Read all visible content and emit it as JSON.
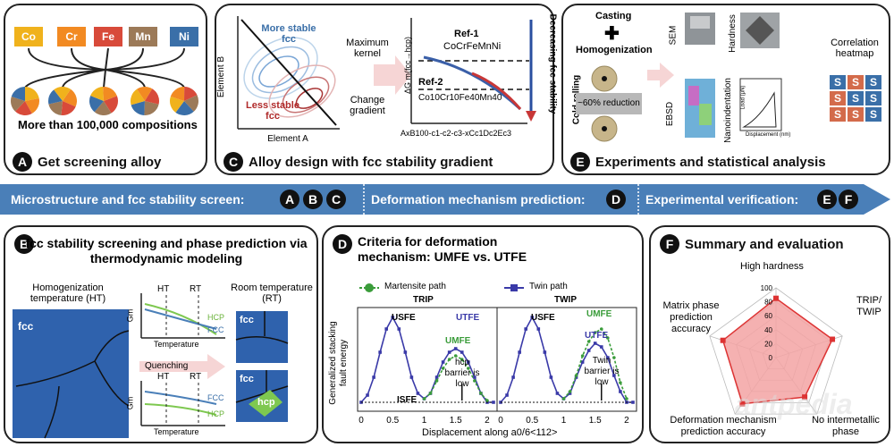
{
  "panelA": {
    "letter": "A",
    "caption": "Get screening alloy",
    "elements": [
      {
        "label": "Co",
        "color": "#f0b21c"
      },
      {
        "label": "Cr",
        "color": "#f28a22"
      },
      {
        "label": "Fe",
        "color": "#d84a3a"
      },
      {
        "label": "Mn",
        "color": "#9c7a58"
      },
      {
        "label": "Ni",
        "color": "#3a6fa8"
      }
    ],
    "compositions_text": "More than 100,000 compositions"
  },
  "panelC": {
    "letter": "C",
    "caption": "Alloy design with fcc stability gradient",
    "more_stable": "More stable fcc",
    "less_stable": "Less stable fcc",
    "axis_x": "Element A",
    "axis_y": "Element B",
    "arrow_top": "Maximum kernel",
    "arrow_bottom": "Change gradient",
    "ref1": "Ref-1",
    "ref1_formula": "CoCrFeMnNi",
    "ref2": "Ref-2",
    "ref2_formula": "Co10Cr10Fe40Mn40",
    "y_label": "ΔG m(fcc→hcp)",
    "x_formula": "AxB100-c1-c2-c3-xCc1Dc2Ec3",
    "gradient_label": "Decreasing fcc stability"
  },
  "panelE": {
    "letter": "E",
    "caption": "Experiments and statistical analysis",
    "casting": "Casting",
    "homogenization": "Homogenization",
    "cold_rolling": "Cold rolling",
    "reduction": "~60% reduction",
    "sem": "SEM",
    "ebsd": "EBSD",
    "hardness": "Hardness",
    "nanoindentation": "Nanoindentation",
    "correlation": "Correlation heatmap",
    "load_label": "Load (μN)",
    "disp_label": "Displacement (nm)",
    "heat_letter": "S"
  },
  "band": {
    "seg1": "Microstructure and fcc stability screen:",
    "seg2": "Deformation mechanism prediction:",
    "seg3": "Experimental verification:",
    "letters1": [
      "A",
      "B",
      "C"
    ],
    "letters2": [
      "D"
    ],
    "letters3": [
      "E",
      "F"
    ]
  },
  "panelB": {
    "letter": "B",
    "title": "fcc stability screening and phase prediction via thermodynamic modeling",
    "homog_label": "Homogenization temperature (HT)",
    "room_label": "Room temperature (RT)",
    "fcc": "fcc",
    "hcp": "hcp",
    "ht": "HT",
    "rt": "RT",
    "gm": "Gm",
    "temperature": "Temperature",
    "hcp_curve": "HCP",
    "fcc_curve": "FCC",
    "quenching": "Quenching"
  },
  "panelD": {
    "letter": "D",
    "title": "Criteria for deformation mechanism: UMFE vs. UTFE",
    "legend_martensite": "Martensite path",
    "legend_twin": "Twin path",
    "trip": "TRIP",
    "twip": "TWIP",
    "usfe": "USFE",
    "utfe": "UTFE",
    "umfe": "UMFE",
    "isfe": "ISFE",
    "hcp_note": "hcp barrier is low",
    "twin_note": "Twin barrier is low",
    "y_label": "Generalized stacking fault energy",
    "x_label": "Displacement along a0/6<112>",
    "xticks": [
      "0",
      "0.5",
      "1",
      "1.5",
      "2"
    ]
  },
  "panelF": {
    "letter": "F",
    "title": "Summary and evaluation",
    "axes": [
      "High hardness",
      "TRIP/ TWIP",
      "No intermetallic phase",
      "Deformation mechanism prediction accuracy",
      "Matrix phase prediction accuracy"
    ],
    "values": [
      85,
      85,
      70,
      82,
      80
    ],
    "ticks": [
      "100",
      "80",
      "60",
      "40",
      "20",
      "0"
    ],
    "watermark": "antpedia"
  },
  "chart_data": [
    {
      "type": "line",
      "title": "TRIP",
      "xlabel": "Displacement along a0/6<112>",
      "ylabel": "Generalized stacking fault energy",
      "xlim": [
        0,
        2.1
      ],
      "series": [
        {
          "name": "Twin path",
          "x": [
            0,
            0.1,
            0.2,
            0.3,
            0.4,
            0.5,
            0.6,
            0.7,
            0.8,
            0.9,
            1.0,
            1.1,
            1.2,
            1.3,
            1.4,
            1.5,
            1.6,
            1.7,
            1.8,
            1.9,
            2.0,
            2.1
          ],
          "values": [
            0,
            8,
            28,
            56,
            82,
            95,
            82,
            56,
            28,
            10,
            4,
            10,
            28,
            45,
            56,
            60,
            56,
            45,
            28,
            10,
            0,
            0
          ]
        },
        {
          "name": "Martensite path",
          "x": [
            1.0,
            1.1,
            1.2,
            1.3,
            1.4,
            1.5,
            1.6,
            1.7,
            1.8,
            1.9,
            2.0
          ],
          "values": [
            4,
            10,
            24,
            38,
            48,
            52,
            48,
            38,
            24,
            10,
            2
          ]
        }
      ]
    },
    {
      "type": "line",
      "title": "TWIP",
      "xlabel": "Displacement along a0/6<112>",
      "ylabel": "Generalized stacking fault energy",
      "xlim": [
        0,
        2.1
      ],
      "series": [
        {
          "name": "Twin path",
          "x": [
            0,
            0.1,
            0.2,
            0.3,
            0.4,
            0.5,
            0.6,
            0.7,
            0.8,
            0.9,
            1.0,
            1.1,
            1.2,
            1.3,
            1.4,
            1.5,
            1.6,
            1.7,
            1.8,
            1.9,
            2.0,
            2.1
          ],
          "values": [
            0,
            8,
            28,
            56,
            82,
            95,
            82,
            56,
            28,
            10,
            4,
            10,
            28,
            45,
            58,
            66,
            62,
            50,
            30,
            12,
            0,
            0
          ]
        },
        {
          "name": "Martensite path",
          "x": [
            1.0,
            1.1,
            1.2,
            1.3,
            1.4,
            1.5,
            1.6,
            1.7,
            1.8,
            1.9,
            2.0
          ],
          "values": [
            4,
            12,
            30,
            52,
            68,
            78,
            82,
            72,
            50,
            22,
            4
          ]
        }
      ]
    },
    {
      "type": "radar",
      "title": "Summary and evaluation",
      "categories": [
        "High hardness",
        "TRIP/ TWIP",
        "No intermetallic phase",
        "Deformation mechanism prediction accuracy",
        "Matrix phase prediction accuracy"
      ],
      "values": [
        85,
        85,
        70,
        82,
        80
      ],
      "ylim": [
        0,
        100
      ]
    }
  ],
  "colors": {
    "band": "#4a7fb8",
    "fcc_blue": "#2f62ad",
    "hcp_green": "#7ec850",
    "radar_fill": "#f3a3a3",
    "radar_line": "#d33"
  }
}
